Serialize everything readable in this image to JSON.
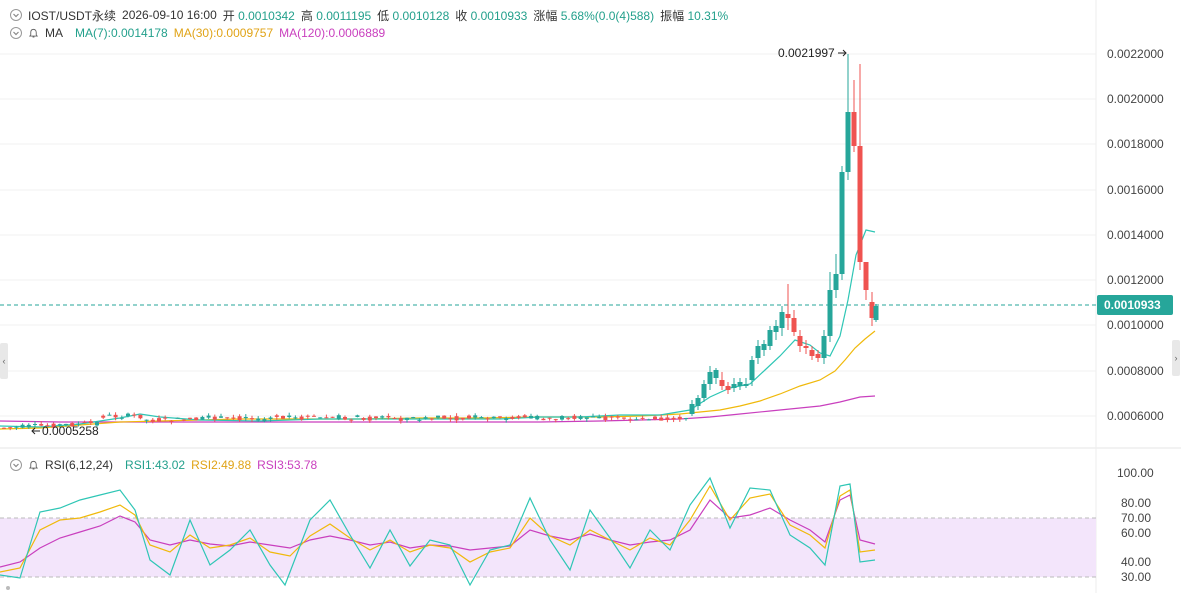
{
  "header": {
    "symbol": "IOST/USDT永续",
    "datetime": "2026-09-10 16:00",
    "open_label": "开",
    "open": "0.0010342",
    "high_label": "高",
    "high": "0.0011195",
    "low_label": "低",
    "low": "0.0010128",
    "close_label": "收",
    "close": "0.0010933",
    "change_label": "涨幅",
    "change": "5.68%(0.0(4)588)",
    "amplitude_label": "振幅",
    "amplitude": "10.31%"
  },
  "ma_row": {
    "label": "MA",
    "ma7": "MA(7):0.0014178",
    "ma30": "MA(30):0.0009757",
    "ma120": "MA(120):0.0006889"
  },
  "rsi_row": {
    "label": "RSI(6,12,24)",
    "rsi1": "RSI1:43.02",
    "rsi2": "RSI2:49.88",
    "rsi3": "RSI3:53.78"
  },
  "price_axis": {
    "ticks": [
      "0.0022000",
      "0.0020000",
      "0.0018000",
      "0.0016000",
      "0.0014000",
      "0.0012000",
      "0.0010000",
      "0.0008000",
      "0.0006000"
    ],
    "current_price_label": "0.0010933"
  },
  "rsi_axis": {
    "ticks": [
      "100.00",
      "80.00",
      "70.00",
      "60.00",
      "40.00",
      "30.00"
    ]
  },
  "annotations": {
    "high_marker": "0.0021997",
    "low_marker": "0.0005258"
  },
  "colors": {
    "up": "#26a69a",
    "down": "#ef5350",
    "ma7": "#2ec6b5",
    "ma30": "#f0b90b",
    "ma120": "#c93fbe",
    "rsi_band": "#f3e5fb"
  }
}
